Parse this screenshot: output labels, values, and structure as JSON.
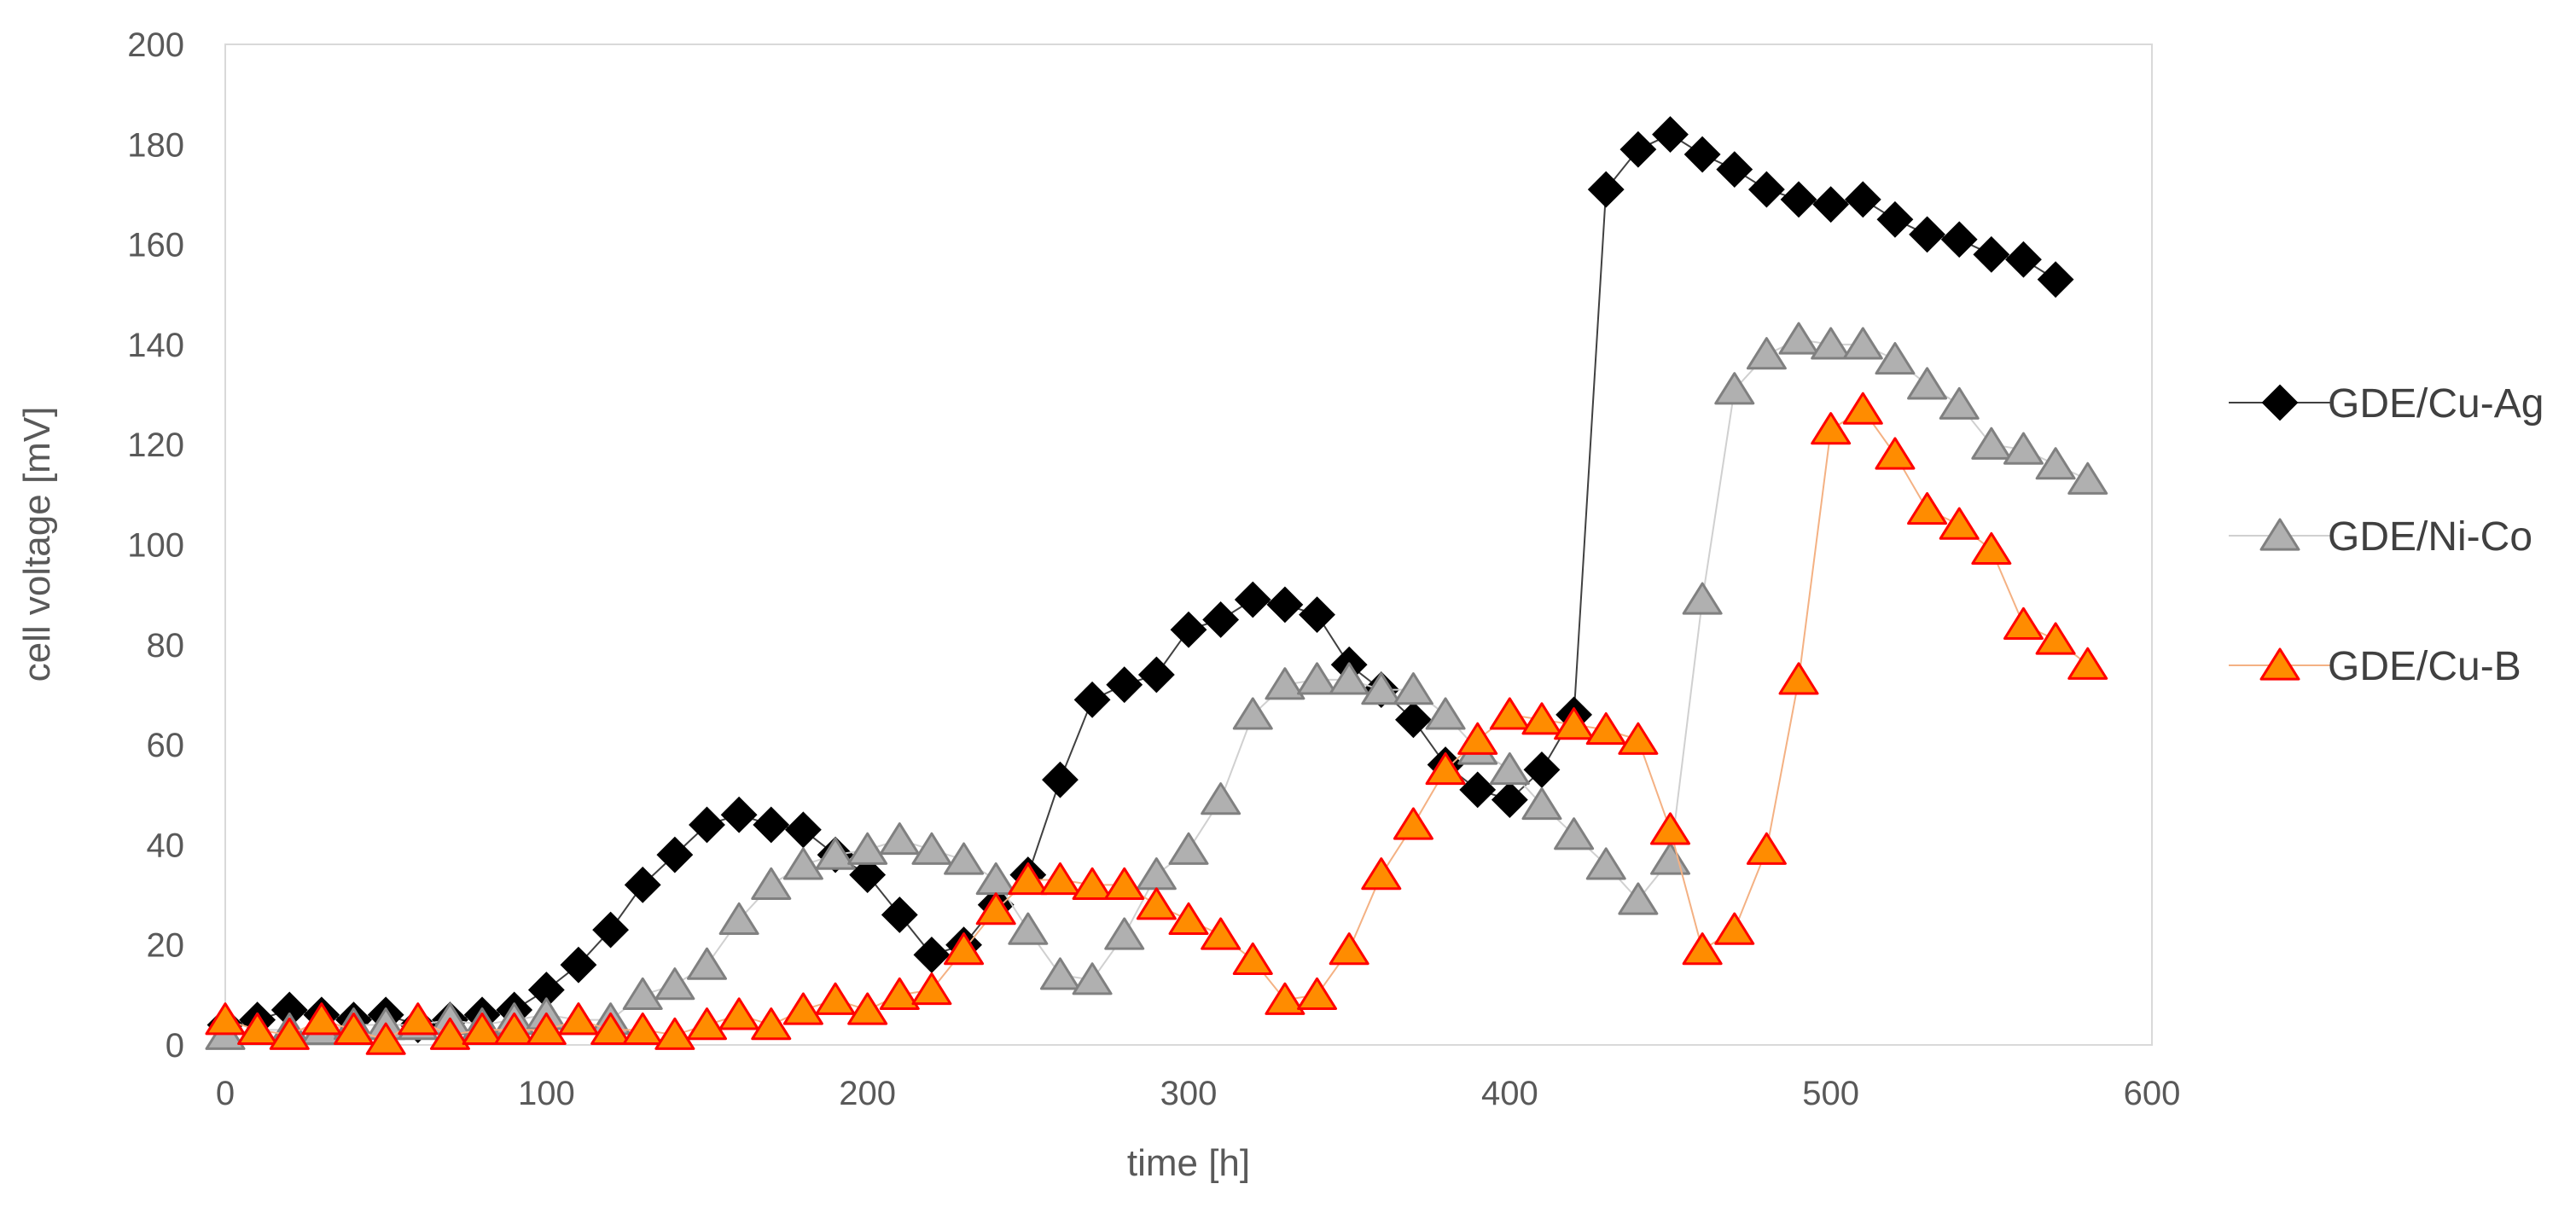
{
  "chart_data": {
    "type": "line",
    "title": "",
    "xlabel": "time [h]",
    "ylabel": "cell voltage [mV]",
    "xlim": [
      0,
      600
    ],
    "ylim": [
      0,
      200
    ],
    "xticks": [
      0,
      100,
      200,
      300,
      400,
      500,
      600
    ],
    "yticks": [
      0,
      20,
      40,
      60,
      80,
      100,
      120,
      140,
      160,
      180,
      200
    ],
    "grid": false,
    "legend_position": "right",
    "x": [
      0,
      10,
      20,
      30,
      40,
      50,
      60,
      70,
      80,
      90,
      100,
      110,
      120,
      130,
      140,
      150,
      160,
      170,
      180,
      190,
      200,
      210,
      220,
      230,
      240,
      250,
      260,
      270,
      280,
      290,
      300,
      310,
      320,
      330,
      340,
      350,
      360,
      370,
      380,
      390,
      400,
      410,
      420,
      430,
      440,
      450,
      460,
      470,
      480,
      490,
      500,
      510,
      520,
      530,
      540,
      550,
      560,
      570,
      580
    ],
    "series": [
      {
        "name": "GDE/Cu-Ag",
        "marker": "diamond",
        "marker_fill": "#000000",
        "marker_stroke": "#000000",
        "line_color": "#404040",
        "values": [
          4,
          5,
          7,
          6,
          5,
          6,
          4,
          5,
          6,
          7,
          11,
          16,
          23,
          32,
          38,
          44,
          46,
          44,
          43,
          38,
          34,
          26,
          18,
          20,
          28,
          34,
          53,
          69,
          72,
          74,
          83,
          85,
          89,
          88,
          86,
          76,
          71,
          65,
          56,
          51,
          49,
          55,
          66,
          171,
          179,
          182,
          178,
          175,
          171,
          169,
          168,
          169,
          165,
          162,
          161,
          158,
          157,
          153,
          null
        ]
      },
      {
        "name": "GDE/Ni-Co",
        "marker": "triangle",
        "marker_fill": "#b0b0b0",
        "marker_stroke": "#808080",
        "line_color": "#d0d0d0",
        "values": [
          2,
          3,
          3,
          3,
          4,
          4,
          4,
          5,
          4,
          5,
          6,
          5,
          5,
          10,
          12,
          16,
          25,
          32,
          36,
          38,
          39,
          41,
          39,
          37,
          33,
          23,
          14,
          13,
          22,
          34,
          39,
          49,
          66,
          72,
          73,
          73,
          71,
          71,
          66,
          59,
          55,
          48,
          42,
          36,
          29,
          37,
          89,
          131,
          138,
          141,
          140,
          140,
          137,
          132,
          128,
          120,
          119,
          116,
          113
        ]
      },
      {
        "name": "GDE/Cu-B",
        "marker": "triangle",
        "marker_fill": "#ff8c00",
        "marker_stroke": "#ff0000",
        "line_color": "#f4b183",
        "values": [
          5,
          3,
          2,
          5,
          3,
          1,
          5,
          2,
          3,
          3,
          3,
          5,
          3,
          3,
          2,
          4,
          6,
          4,
          7,
          9,
          7,
          10,
          11,
          19,
          27,
          33,
          33,
          32,
          32,
          28,
          25,
          22,
          17,
          9,
          10,
          19,
          34,
          44,
          55,
          61,
          66,
          65,
          64,
          63,
          61,
          43,
          19,
          23,
          39,
          73,
          123,
          127,
          118,
          107,
          104,
          99,
          84,
          81,
          76
        ]
      }
    ]
  }
}
